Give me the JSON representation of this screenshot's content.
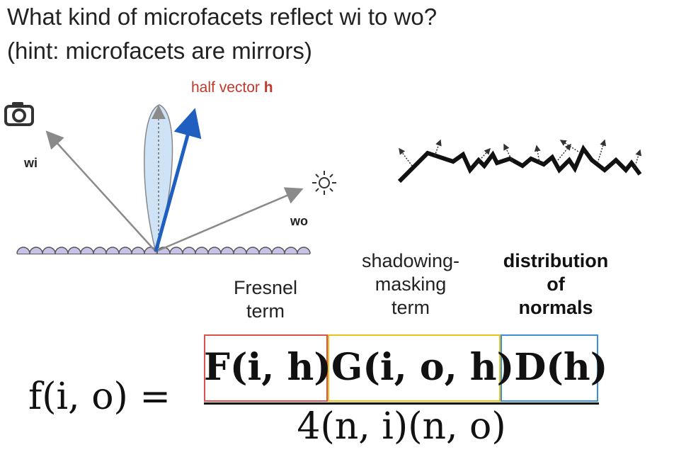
{
  "header": {
    "question": "What kind of microfacets reflect wi to wo?",
    "hint": "(hint: microfacets are mirrors)"
  },
  "diagram": {
    "wi_label": "wi",
    "wo_label": "wo",
    "half_vector_label": "half vector ",
    "half_vector_symbol": "h",
    "colors": {
      "half_vector": "#1f5fbf",
      "lobe": "#cfe3f7",
      "surface": "#c9c2e6",
      "rays": "#8a8a8a",
      "half_label": "#c0392b"
    }
  },
  "terms": {
    "fresnel": [
      "Fresnel",
      "term"
    ],
    "shadowing": [
      "shadowing-",
      "masking",
      "term"
    ],
    "distribution": [
      "distribution",
      "of",
      "normals"
    ]
  },
  "formula": {
    "lhs": "f(i, o) =",
    "numerator_F": "F(i, h)",
    "numerator_G": "G(i, o, h)",
    "numerator_D": "D(h)",
    "denominator": "4(n, i)(n, o)"
  }
}
